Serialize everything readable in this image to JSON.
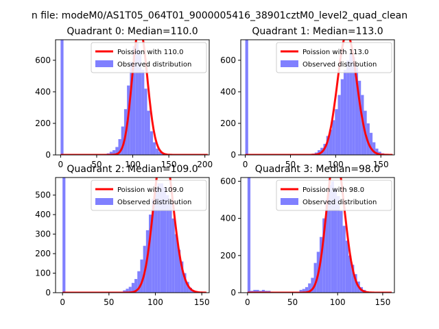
{
  "suptitle": "n file: modeM0/AS1T05_064T01_9000005416_38901cztM0_level2_quad_clean",
  "legend": {
    "observed_label": "Observed distribution"
  },
  "colors": {
    "poisson": "#ff0000",
    "observed": "#8080ff"
  },
  "chart_data": [
    {
      "type": "bar",
      "title": "Quadrant 0: Median=110.0",
      "poisson_label": "Poission with 110.0",
      "median": 110.0,
      "xlim": [
        -7,
        206
      ],
      "ylim": [
        0,
        730
      ],
      "xticks": [
        0,
        50,
        100,
        150,
        200
      ],
      "yticks": [
        0,
        200,
        400,
        600
      ],
      "bins": [
        0,
        4,
        8,
        12,
        16,
        20,
        24,
        28,
        32,
        36,
        40,
        44,
        48,
        52,
        56,
        60,
        64,
        68,
        72,
        76,
        80,
        84,
        88,
        92,
        96,
        100,
        104,
        108,
        112,
        116,
        120,
        124,
        128,
        132,
        136,
        140,
        144,
        148,
        152,
        156,
        160,
        164,
        168,
        172,
        176,
        180,
        184,
        188,
        192,
        196,
        200
      ],
      "counts": [
        740,
        0,
        0,
        0,
        0,
        0,
        0,
        0,
        0,
        0,
        0,
        0,
        0,
        0,
        0,
        5,
        10,
        20,
        30,
        50,
        100,
        180,
        290,
        440,
        590,
        690,
        710,
        660,
        540,
        420,
        280,
        150,
        80,
        40,
        20,
        10,
        5,
        2,
        0,
        0,
        0,
        0,
        0,
        0,
        0,
        0,
        0,
        0,
        0,
        0
      ]
    },
    {
      "type": "bar",
      "title": "Quadrant 1: Median=113.0",
      "poisson_label": "Poission with 113.0",
      "median": 113.0,
      "xlim": [
        -5,
        165
      ],
      "ylim": [
        0,
        730
      ],
      "xticks": [
        0,
        50,
        100,
        150
      ],
      "yticks": [
        0,
        200,
        400,
        600
      ],
      "bins": [
        0,
        3.2,
        6.4,
        9.6,
        12.8,
        16,
        19.2,
        22.4,
        25.6,
        28.8,
        32,
        35.2,
        38.4,
        41.6,
        44.8,
        48,
        51.2,
        54.4,
        57.6,
        60.8,
        64,
        67.2,
        70.4,
        73.6,
        76.8,
        80,
        83.2,
        86.4,
        89.6,
        92.8,
        96,
        99.2,
        102.4,
        105.6,
        108.8,
        112,
        115.2,
        118.4,
        121.6,
        124.8,
        128,
        131.2,
        134.4,
        137.6,
        140.8,
        144,
        147.2,
        150.4,
        153.6,
        156.8,
        160
      ],
      "counts": [
        740,
        0,
        0,
        0,
        0,
        0,
        0,
        0,
        0,
        0,
        0,
        0,
        0,
        0,
        0,
        0,
        0,
        0,
        0,
        0,
        0,
        0,
        3,
        8,
        15,
        30,
        45,
        70,
        120,
        160,
        220,
        290,
        380,
        480,
        540,
        600,
        640,
        620,
        560,
        470,
        380,
        280,
        200,
        140,
        80,
        40,
        20,
        10,
        5,
        2
      ]
    },
    {
      "type": "bar",
      "title": "Quadrant 2: Median=109.0",
      "poisson_label": "Poission with 109.0",
      "median": 109.0,
      "xlim": [
        -7.5,
        158
      ],
      "ylim": [
        0,
        590
      ],
      "xticks": [
        0,
        50,
        100,
        150
      ],
      "yticks": [
        0,
        100,
        200,
        300,
        400,
        500
      ],
      "bins": [
        0,
        3.1,
        6.2,
        9.3,
        12.4,
        15.5,
        18.6,
        21.7,
        24.8,
        27.9,
        31,
        34.1,
        37.2,
        40.3,
        43.4,
        46.5,
        49.6,
        52.7,
        55.8,
        58.9,
        62,
        65.1,
        68.2,
        71.3,
        74.4,
        77.5,
        80.6,
        83.7,
        86.8,
        89.9,
        93,
        96.1,
        99.2,
        102.3,
        105.4,
        108.5,
        111.6,
        114.7,
        117.8,
        120.9,
        124,
        127.1,
        130.2,
        133.3,
        136.4,
        139.5,
        142.6,
        145.7,
        148.8,
        151.9
      ],
      "counts": [
        600,
        0,
        0,
        0,
        0,
        0,
        0,
        0,
        0,
        0,
        0,
        0,
        0,
        0,
        0,
        0,
        0,
        0,
        0,
        0,
        5,
        12,
        20,
        30,
        50,
        70,
        110,
        170,
        240,
        320,
        400,
        480,
        540,
        560,
        560,
        540,
        500,
        460,
        380,
        300,
        220,
        160,
        100,
        55,
        25,
        10,
        5,
        2,
        0,
        0
      ]
    },
    {
      "type": "bar",
      "title": "Quadrant 3: Median=98.0",
      "poisson_label": "Poission with 98.0",
      "median": 98.0,
      "xlim": [
        -7.5,
        163
      ],
      "ylim": [
        0,
        620
      ],
      "xticks": [
        0,
        50,
        100,
        150
      ],
      "yticks": [
        0,
        200,
        400,
        600
      ],
      "bins": [
        0,
        3.2,
        6.4,
        9.6,
        12.8,
        16,
        19.2,
        22.4,
        25.6,
        28.8,
        32,
        35.2,
        38.4,
        41.6,
        44.8,
        48,
        51.2,
        54.4,
        57.6,
        60.8,
        64,
        67.2,
        70.4,
        73.6,
        76.8,
        80,
        83.2,
        86.4,
        89.6,
        92.8,
        96,
        99.2,
        102.4,
        105.6,
        108.8,
        112,
        115.2,
        118.4,
        121.6,
        124.8,
        128,
        131.2,
        134.4,
        137.6,
        140.8,
        144,
        147.2,
        150.4,
        153.6,
        156.8
      ],
      "counts": [
        620,
        10,
        15,
        15,
        10,
        15,
        10,
        10,
        5,
        0,
        0,
        0,
        0,
        0,
        0,
        0,
        0,
        0,
        15,
        20,
        30,
        50,
        80,
        160,
        220,
        300,
        400,
        500,
        580,
        600,
        560,
        520,
        440,
        360,
        280,
        200,
        150,
        100,
        60,
        30,
        15,
        5,
        2,
        0,
        0,
        0,
        0,
        0,
        0,
        0
      ]
    }
  ]
}
